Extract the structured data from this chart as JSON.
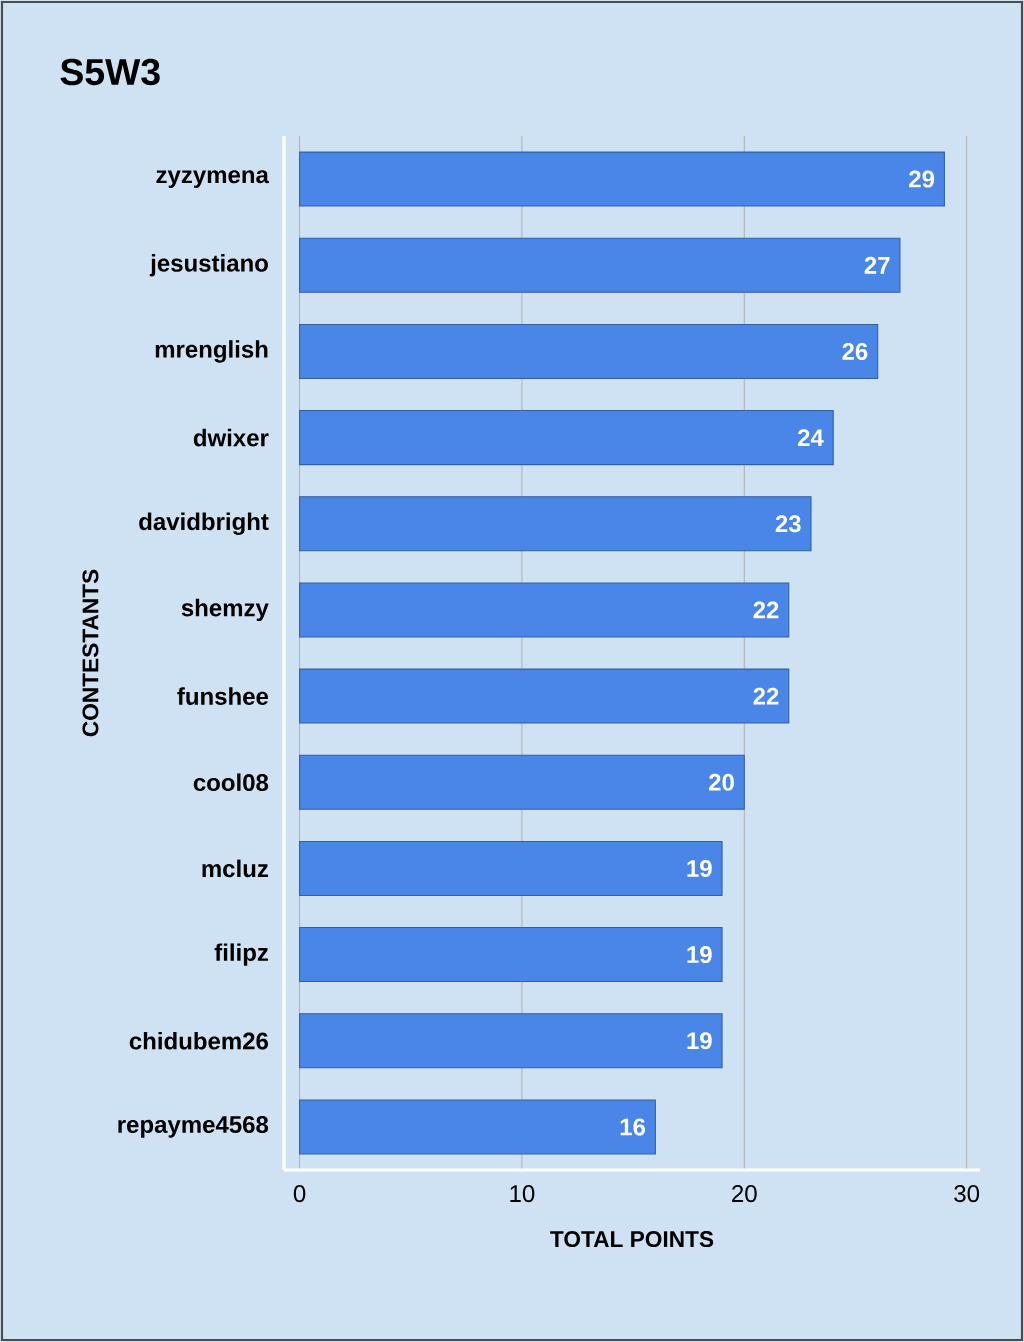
{
  "chart_data": {
    "type": "bar",
    "orientation": "horizontal",
    "title": "S5W3",
    "xlabel": "TOTAL POINTS",
    "ylabel": "CONTESTANTS",
    "categories": [
      "zyzymena",
      "jesustiano",
      "mrenglish",
      "dwixer",
      "davidbright",
      "shemzy",
      "funshee",
      "cool08",
      "mcluz",
      "filipz",
      "chidubem26",
      "repayme4568"
    ],
    "values": [
      29,
      27,
      26,
      24,
      23,
      22,
      22,
      20,
      19,
      19,
      19,
      16
    ],
    "color": "#4a86e8",
    "xlim": [
      -0.7,
      30.6
    ],
    "xticks": [
      0,
      10,
      20,
      30
    ],
    "grid": "x",
    "data_labels": true
  }
}
